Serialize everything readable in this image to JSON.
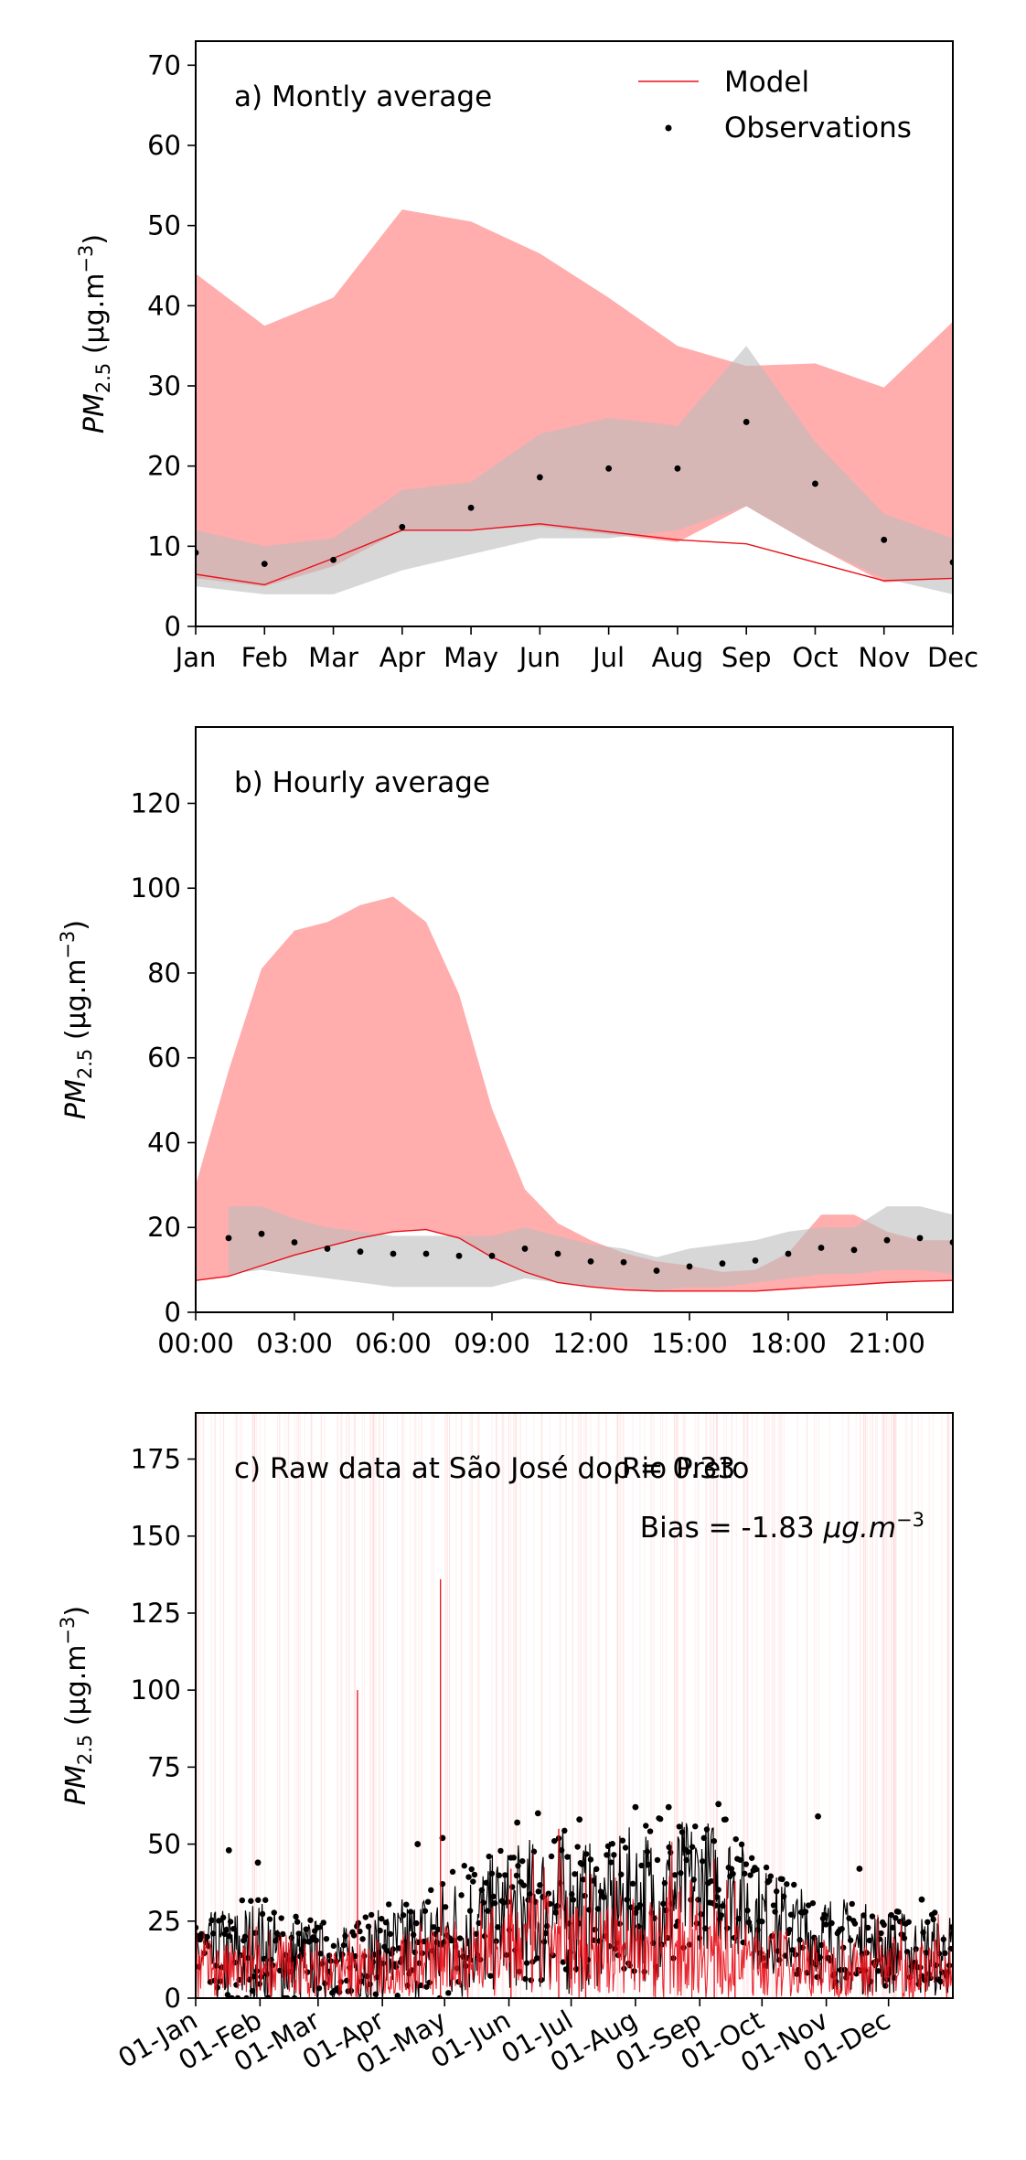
{
  "colors": {
    "model_line": "#e8101a",
    "model_band": "#ff9999",
    "obs_band": "#bdbdbd",
    "obs_points": "#000000"
  },
  "legend": {
    "model": "Model",
    "observations": "Observations"
  },
  "chart_data": [
    {
      "type": "line",
      "title": "a) Montly average",
      "ylabel_main": "PM",
      "ylabel_sub": "2.5",
      "ylabel_units": "(μg.m",
      "ylabel_sup": "−3",
      "ylim": [
        0,
        73
      ],
      "yticks": [
        0,
        10,
        20,
        30,
        40,
        50,
        60,
        70
      ],
      "legend_position": "top-right",
      "categories": [
        "Jan",
        "Feb",
        "Mar",
        "Apr",
        "May",
        "Jun",
        "Jul",
        "Aug",
        "Sep",
        "Oct",
        "Nov",
        "Dec"
      ],
      "series": [
        {
          "name": "Model",
          "kind": "line",
          "values": [
            6.5,
            5.2,
            8.5,
            12.0,
            12.0,
            12.8,
            11.8,
            10.8,
            10.3,
            8.0,
            5.7,
            6.0
          ]
        },
        {
          "name": "Observations",
          "kind": "points",
          "values": [
            9.2,
            7.8,
            8.3,
            12.4,
            14.8,
            18.6,
            19.7,
            19.7,
            25.5,
            17.8,
            10.8,
            8.0
          ]
        }
      ],
      "bands": [
        {
          "series": "Model",
          "lower": [
            6.0,
            5.0,
            7.5,
            12.0,
            12.0,
            12.5,
            11.5,
            10.5,
            15.0,
            10.0,
            5.5,
            6.0
          ],
          "upper": [
            44,
            37.5,
            41,
            52,
            50.5,
            46.5,
            41,
            35,
            32.5,
            32.8,
            29.8,
            38
          ]
        },
        {
          "series": "Observations",
          "lower": [
            5.0,
            4.0,
            4.0,
            7.0,
            9.0,
            11.0,
            11.0,
            12.0,
            15.0,
            10.0,
            6.0,
            4.0
          ],
          "upper": [
            12.0,
            10.0,
            11.0,
            17.0,
            18.0,
            24.0,
            26.0,
            25.0,
            35.0,
            23.0,
            14.0,
            11.0
          ]
        }
      ]
    },
    {
      "type": "line",
      "title": "b) Hourly average",
      "ylabel_main": "PM",
      "ylabel_sub": "2.5",
      "ylabel_units": "(μg.m",
      "ylabel_sup": "−3",
      "ylim": [
        0,
        138
      ],
      "yticks": [
        0,
        20,
        40,
        60,
        80,
        100,
        120
      ],
      "xlim": [
        0,
        23
      ],
      "xticks": [
        0,
        3,
        6,
        9,
        12,
        15,
        18,
        21
      ],
      "xticklabels": [
        "00:00",
        "03:00",
        "06:00",
        "09:00",
        "12:00",
        "15:00",
        "18:00",
        "21:00"
      ],
      "series": [
        {
          "name": "Model",
          "kind": "line",
          "x": [
            0,
            1,
            2,
            3,
            4,
            5,
            6,
            7,
            8,
            9,
            10,
            11,
            12,
            13,
            14,
            15,
            16,
            17,
            18,
            19,
            20,
            21,
            22,
            23
          ],
          "values": [
            7.5,
            8.5,
            11,
            13.5,
            15.5,
            17.5,
            19,
            19.5,
            17.5,
            13,
            9.5,
            7,
            6,
            5.3,
            5,
            5,
            5,
            5,
            5.5,
            6,
            6.5,
            7,
            7.3,
            7.5
          ]
        },
        {
          "name": "Observations",
          "kind": "points",
          "x": [
            1,
            2,
            3,
            4,
            5,
            6,
            7,
            8,
            9,
            10,
            11,
            12,
            13,
            14,
            15,
            16,
            17,
            18,
            19,
            20,
            21,
            22,
            23
          ],
          "values": [
            17.5,
            18.5,
            16.5,
            15,
            14.3,
            13.8,
            13.8,
            13.3,
            13.3,
            15,
            13.8,
            12,
            11.8,
            9.8,
            10.8,
            11.5,
            12.2,
            13.8,
            15.2,
            14.7,
            17,
            17.5,
            16.5
          ]
        }
      ],
      "bands": [
        {
          "series": "Model",
          "x": [
            0,
            1,
            2,
            3,
            4,
            5,
            6,
            7,
            8,
            9,
            10,
            11,
            12,
            13,
            14,
            15,
            16,
            17,
            18,
            19,
            20,
            21,
            22,
            23
          ],
          "lower": [
            7.5,
            8.5,
            11,
            13.5,
            15.5,
            17.5,
            19,
            19.5,
            17.5,
            13,
            9.5,
            7,
            6,
            5.3,
            5,
            5,
            5,
            5,
            5.5,
            6,
            6.5,
            7,
            7.3,
            7.5
          ],
          "upper": [
            30,
            57,
            81,
            90,
            92,
            96,
            98,
            92,
            75,
            48,
            29,
            21,
            17,
            14,
            12,
            11,
            9.5,
            10,
            14,
            23,
            23,
            19,
            17,
            17
          ]
        },
        {
          "series": "Observations",
          "x": [
            1,
            2,
            3,
            4,
            5,
            6,
            7,
            8,
            9,
            10,
            11,
            12,
            13,
            14,
            15,
            16,
            17,
            18,
            19,
            20,
            21,
            22,
            23
          ],
          "lower": [
            9,
            10,
            9,
            8,
            7,
            6,
            6,
            6,
            6,
            8,
            7,
            6,
            6,
            5,
            6,
            6,
            7,
            8,
            9,
            9,
            10,
            10,
            9
          ],
          "upper": [
            25,
            25,
            22,
            20,
            19,
            18,
            18,
            18,
            18,
            20,
            18,
            16,
            15,
            13,
            15,
            16,
            17,
            19,
            20,
            20,
            25,
            25,
            23
          ]
        }
      ]
    },
    {
      "type": "line",
      "title": "c) Raw data at São José do Rio Preto",
      "annotation_rho": "ρ = 0.33",
      "annotation_bias": "Bias = -1.83",
      "annotation_bias_units": "μg.m",
      "annotation_bias_sup": "−3",
      "ylabel_main": "PM",
      "ylabel_sub": "2.5",
      "ylabel_units": "(μg.m",
      "ylabel_sup": "−3",
      "ylim": [
        0,
        190
      ],
      "yticks": [
        0,
        25,
        50,
        75,
        100,
        125,
        150,
        175
      ],
      "xlim_days": [
        0,
        365
      ],
      "xticks_days": [
        0,
        31,
        59,
        90,
        120,
        151,
        181,
        212,
        243,
        273,
        304,
        334
      ],
      "xticklabels": [
        "01-Jan",
        "01-Feb",
        "01-Mar",
        "01-Apr",
        "01-May",
        "01-Jun",
        "01-Jul",
        "01-Aug",
        "01-Sep",
        "01-Oct",
        "01-Nov",
        "01-Dec"
      ],
      "model_envelope": {
        "day": [
          0,
          15,
          30,
          45,
          60,
          75,
          90,
          105,
          120,
          135,
          150,
          165,
          180,
          195,
          210,
          225,
          240,
          255,
          270,
          285,
          300,
          315,
          330,
          345,
          365
        ],
        "upper": [
          22,
          20,
          20,
          17,
          18,
          18,
          22,
          25,
          26,
          30,
          34,
          38,
          38,
          33,
          34,
          38,
          44,
          30,
          26,
          25,
          22,
          20,
          22,
          20,
          22
        ]
      },
      "model_spikes": [
        {
          "day": 78,
          "value": 100
        },
        {
          "day": 118,
          "value": 136
        },
        {
          "day": 152,
          "value": 42
        },
        {
          "day": 175,
          "value": 55
        },
        {
          "day": 188,
          "value": 40
        },
        {
          "day": 250,
          "value": 45
        },
        {
          "day": 260,
          "value": 38
        }
      ],
      "obs_envelope": {
        "day": [
          0,
          15,
          30,
          45,
          60,
          75,
          90,
          105,
          120,
          135,
          150,
          165,
          180,
          195,
          210,
          225,
          240,
          255,
          270,
          285,
          300,
          315,
          330,
          345,
          365
        ],
        "mid": [
          12,
          11,
          13,
          10,
          11,
          10,
          12,
          14,
          16,
          20,
          23,
          25,
          25,
          24,
          28,
          28,
          35,
          35,
          25,
          20,
          18,
          15,
          14,
          13,
          12
        ],
        "upper": [
          28,
          33,
          36,
          30,
          28,
          25,
          32,
          38,
          44,
          48,
          52,
          58,
          60,
          52,
          60,
          62,
          62,
          62,
          48,
          40,
          38,
          35,
          32,
          30,
          30
        ]
      },
      "obs_outliers": [
        {
          "day": 16,
          "value": 48
        },
        {
          "day": 30,
          "value": 44
        },
        {
          "day": 107,
          "value": 50
        },
        {
          "day": 119,
          "value": 52
        },
        {
          "day": 155,
          "value": 57
        },
        {
          "day": 165,
          "value": 60
        },
        {
          "day": 185,
          "value": 58
        },
        {
          "day": 212,
          "value": 62
        },
        {
          "day": 228,
          "value": 62
        },
        {
          "day": 252,
          "value": 63
        },
        {
          "day": 300,
          "value": 59
        },
        {
          "day": 320,
          "value": 42
        },
        {
          "day": 350,
          "value": 32
        }
      ]
    }
  ]
}
